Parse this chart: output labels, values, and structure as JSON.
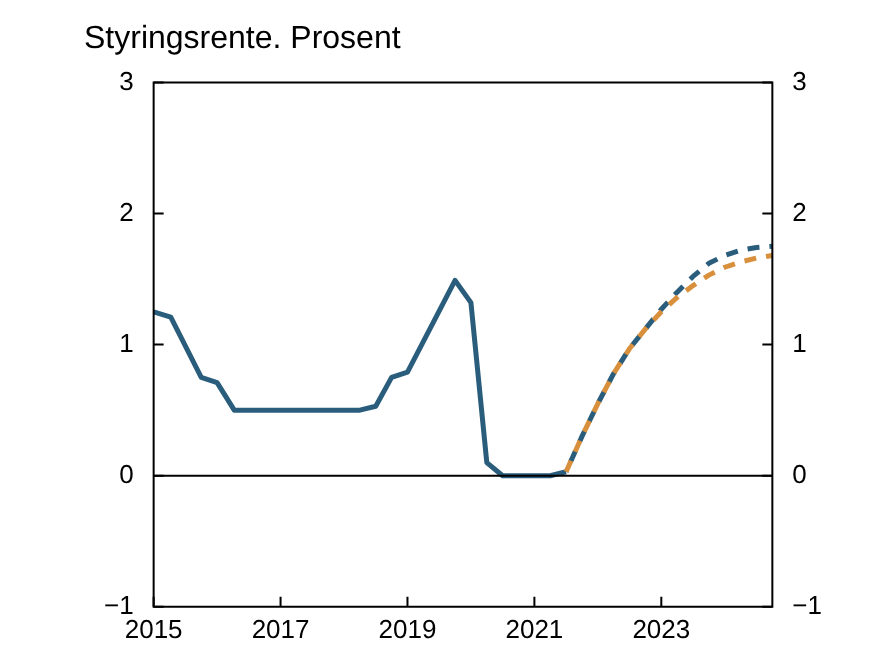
{
  "chart_data": {
    "type": "line",
    "title": "Styringsrente. Prosent",
    "xlim": [
      2015,
      2024.75
    ],
    "xticks": [
      2015,
      2017,
      2019,
      2021,
      2023
    ],
    "ylim": [
      -1,
      3
    ],
    "yticks": [
      -1,
      0,
      1,
      2,
      3
    ],
    "y2lim": [
      -1,
      3
    ],
    "y2ticks": [
      -1,
      0,
      1,
      2,
      3
    ],
    "grid": false,
    "legend": false,
    "marker": "none",
    "ref_lines": [
      {
        "axis": "y",
        "value": 0,
        "color": "#000000"
      }
    ],
    "series": [
      {
        "color": "#2a5d7c",
        "line_style": "solid",
        "x": [
          2015,
          2015.27,
          2015.75,
          2016,
          2016.27,
          2018.25,
          2018.5,
          2018.75,
          2019,
          2019.75,
          2020,
          2020.25,
          2020.5,
          2021.25,
          2021.5
        ],
        "values": [
          1.25,
          1.21,
          0.75,
          0.71,
          0.5,
          0.5,
          0.53,
          0.75,
          0.79,
          1.49,
          1.32,
          0.1,
          0,
          0,
          0.03
        ]
      },
      {
        "color": "#2a5d7c",
        "line_style": "dashed",
        "x": [
          2021.5,
          2021.75,
          2022,
          2022.25,
          2022.5,
          2022.75,
          2023,
          2023.25,
          2023.5,
          2023.75,
          2024,
          2024.25,
          2024.5,
          2024.75
        ],
        "values": [
          0.03,
          0.3,
          0.55,
          0.78,
          0.97,
          1.12,
          1.27,
          1.4,
          1.52,
          1.62,
          1.68,
          1.72,
          1.74,
          1.75
        ]
      },
      {
        "color": "#d9903d",
        "line_style": "dashed",
        "x": [
          2021.5,
          2021.75,
          2022,
          2022.25,
          2022.5,
          2022.75,
          2023,
          2023.25,
          2023.5,
          2023.75,
          2024,
          2024.25,
          2024.5,
          2024.75
        ],
        "values": [
          0.03,
          0.3,
          0.55,
          0.78,
          0.97,
          1.12,
          1.25,
          1.36,
          1.45,
          1.53,
          1.59,
          1.63,
          1.66,
          1.68
        ]
      }
    ]
  }
}
